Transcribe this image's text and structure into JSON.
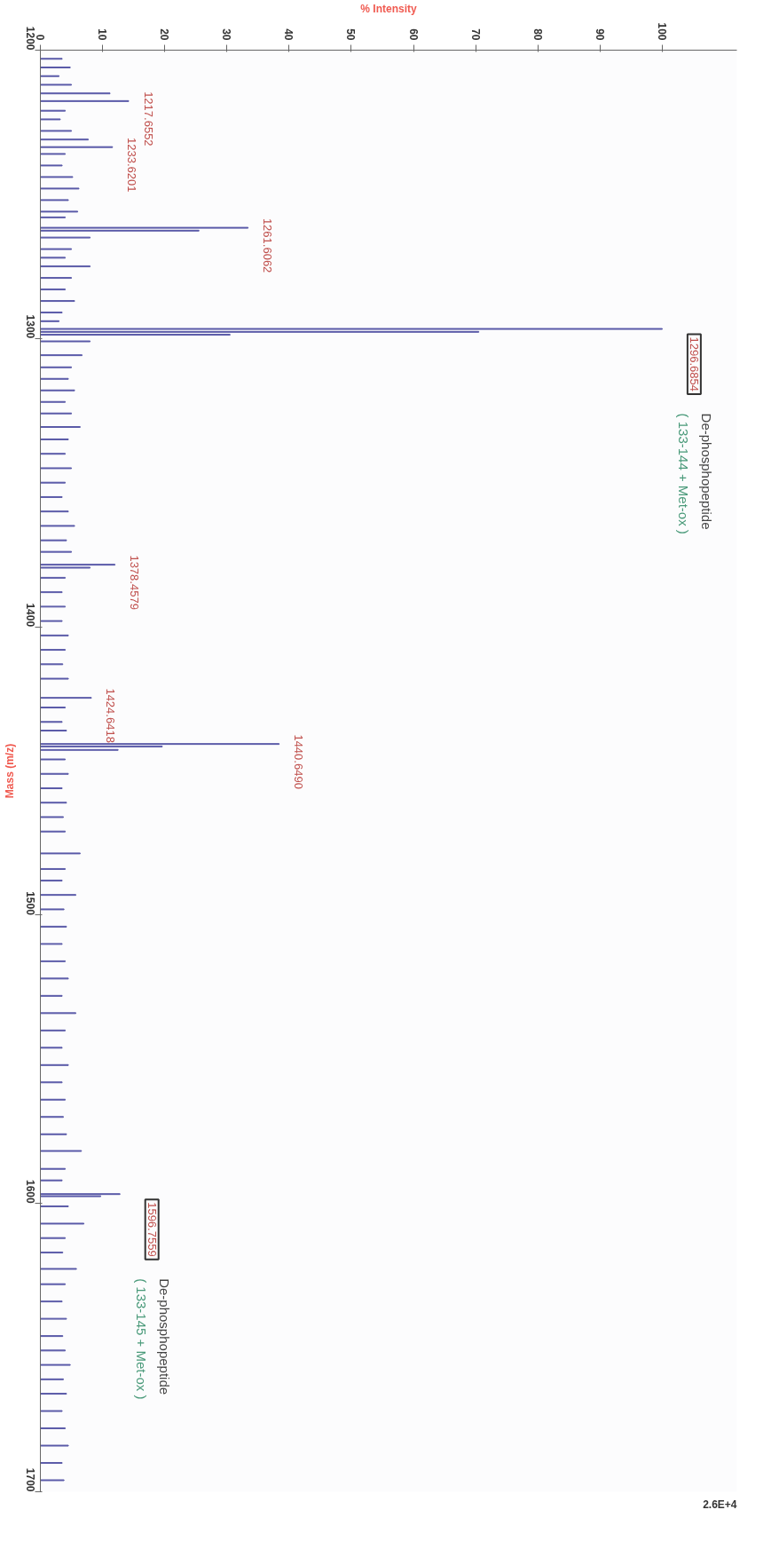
{
  "chart_data": {
    "type": "bar",
    "orientation": "horizontal",
    "xlabel": "% Intensity",
    "ylabel": "Mass (m/z)",
    "x": [
      1203,
      1206,
      1209,
      1212,
      1215,
      1217.66,
      1221,
      1224,
      1228,
      1231,
      1233.62,
      1236,
      1240,
      1244,
      1248,
      1252,
      1256,
      1258,
      1261.61,
      1262.6,
      1265,
      1269,
      1272,
      1275,
      1279,
      1283,
      1287,
      1291,
      1294,
      1296.69,
      1297.7,
      1298.7,
      1301,
      1305.8,
      1310,
      1314,
      1318,
      1322,
      1326,
      1330.7,
      1335,
      1340,
      1345,
      1350,
      1355,
      1360,
      1365,
      1370,
      1374,
      1378.46,
      1379.5,
      1383,
      1388,
      1393,
      1398,
      1403,
      1408,
      1413,
      1418,
      1424.64,
      1428,
      1433,
      1436,
      1440.65,
      1441.5,
      1442.7,
      1446,
      1451,
      1456,
      1461,
      1466,
      1471,
      1478.6,
      1484,
      1488,
      1493,
      1498,
      1504,
      1510,
      1516,
      1522,
      1528,
      1534,
      1540,
      1546,
      1552,
      1558,
      1564,
      1570,
      1576,
      1581.8,
      1588,
      1592,
      1596.76,
      1597.5,
      1601,
      1607,
      1612,
      1617,
      1622.7,
      1628,
      1634,
      1640,
      1646,
      1651,
      1656,
      1661,
      1666,
      1672,
      1678,
      1684,
      1690,
      1696
    ],
    "values": [
      3.5,
      4.8,
      3,
      5,
      11.2,
      14.2,
      4,
      3.2,
      5,
      7.7,
      11.6,
      4,
      3.5,
      5.2,
      6.2,
      4.5,
      6,
      4,
      33.4,
      25.5,
      8,
      5,
      4,
      8,
      5,
      4,
      5.5,
      3.5,
      3,
      100,
      70.5,
      30.5,
      8,
      6.7,
      5,
      4.5,
      5.5,
      4,
      5,
      6.4,
      4.5,
      4,
      5,
      4,
      3.5,
      4.5,
      5.5,
      4.2,
      5,
      12,
      8,
      4,
      3.5,
      4,
      3.5,
      4.5,
      4,
      3.6,
      4.5,
      8.2,
      4,
      3.5,
      4.2,
      38.4,
      19.6,
      12.5,
      4,
      4.5,
      3.5,
      4.2,
      3.7,
      4,
      6.4,
      4,
      3.5,
      5.7,
      3.8,
      4.2,
      3.5,
      4,
      4.5,
      3.5,
      5.7,
      4,
      3.5,
      4.5,
      3.5,
      4,
      3.7,
      4.2,
      6.6,
      4,
      3.5,
      12.8,
      9.7,
      4.5,
      7,
      4,
      3.6,
      5.8,
      4,
      3.5,
      4.2,
      3.6,
      4,
      4.8,
      3.7,
      4.2,
      3.5,
      4,
      4.5,
      3.5,
      3.8
    ],
    "color": "#5a5aa8",
    "xlim": [
      0,
      112
    ],
    "xticks": [
      0,
      10,
      20,
      30,
      40,
      50,
      60,
      70,
      80,
      90,
      100
    ],
    "ylim": [
      1700,
      1200
    ],
    "yticks": [
      1200,
      1300,
      1400,
      1500,
      1600,
      1700
    ],
    "grid": false,
    "annotations": [
      {
        "text": "1217.6552",
        "x": 14.2,
        "y": 1217.66
      },
      {
        "text": "1233.6201",
        "x": 11.6,
        "y": 1233.62
      },
      {
        "text": "1261.6062",
        "x": 33.4,
        "y": 1261.61
      },
      {
        "text": "1296.6854",
        "x": 100,
        "y": 1296.69
      },
      "De-phosphopeptide",
      "( 133-144 + Met-ox )",
      {
        "text": "1378.4579",
        "x": 12,
        "y": 1378.46
      },
      {
        "text": "1424.6418",
        "x": 8.2,
        "y": 1424.64
      },
      {
        "text": "1440.6490",
        "x": 38.4,
        "y": 1440.65
      },
      {
        "text": "1596.7559",
        "x": 12.8,
        "y": 1596.76
      },
      "De-phosphopeptide",
      "( 133-145 + Met-ox  )",
      "2.6E+4"
    ]
  }
}
